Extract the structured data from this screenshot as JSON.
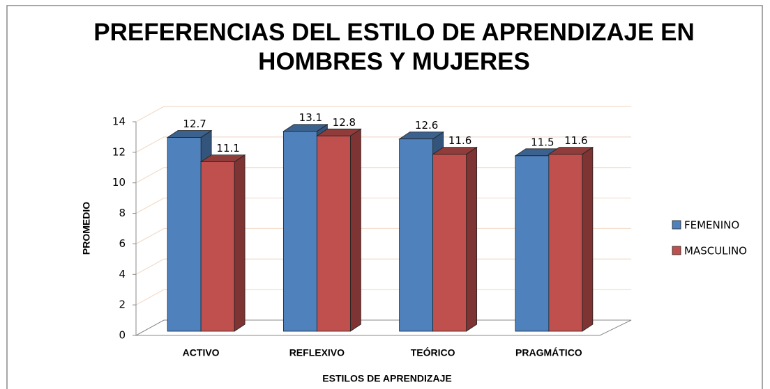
{
  "chart_data": {
    "type": "bar3d",
    "title": "PREFERENCIAS DEL ESTILO DE APRENDIZAJE EN HOMBRES Y MUJERES",
    "x_label": "ESTILOS DE APRENDIZAJE",
    "y_label": "PROMEDIO",
    "categories": [
      "ACTIVO",
      "REFLEXIVO",
      "TEÓRICO",
      "PRAGMÁTICO"
    ],
    "series": [
      {
        "name": "FEMENINO",
        "color": "#4f81bd",
        "values": [
          12.7,
          13.1,
          12.6,
          11.5
        ]
      },
      {
        "name": "MASCULINO",
        "color": "#c0504d",
        "values": [
          11.1,
          12.8,
          11.6,
          11.6
        ]
      }
    ],
    "ylim": [
      0,
      14
    ],
    "yticks": [
      0,
      2,
      4,
      6,
      8,
      10,
      12,
      14
    ],
    "grid": true,
    "legend": "right"
  }
}
